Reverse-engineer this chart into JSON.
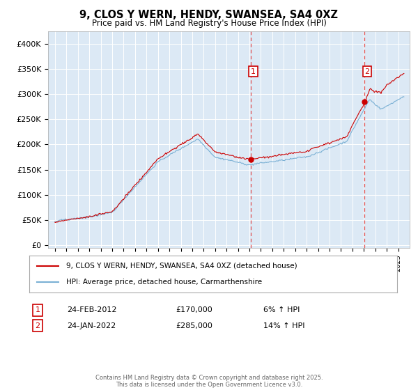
{
  "title": "9, CLOS Y WERN, HENDY, SWANSEA, SA4 0XZ",
  "subtitle": "Price paid vs. HM Land Registry's House Price Index (HPI)",
  "background_color": "#dce9f5",
  "plot_bg_color": "#dce9f5",
  "red_line_label": "9, CLOS Y WERN, HENDY, SWANSEA, SA4 0XZ (detached house)",
  "blue_line_label": "HPI: Average price, detached house, Carmarthenshire",
  "footer": "Contains HM Land Registry data © Crown copyright and database right 2025.\nThis data is licensed under the Open Government Licence v3.0.",
  "annotation1": {
    "num": "1",
    "date": "24-FEB-2012",
    "price": "£170,000",
    "pct": "6% ↑ HPI"
  },
  "annotation2": {
    "num": "2",
    "date": "24-JAN-2022",
    "price": "£285,000",
    "pct": "14% ↑ HPI"
  },
  "yticks": [
    0,
    50000,
    100000,
    150000,
    200000,
    250000,
    300000,
    350000,
    400000
  ],
  "ytick_labels": [
    "£0",
    "£50K",
    "£100K",
    "£150K",
    "£200K",
    "£250K",
    "£300K",
    "£350K",
    "£400K"
  ],
  "x_start_year": 1995,
  "x_end_year": 2025,
  "sale1_year": 2012.12,
  "sale1_price": 170000,
  "sale2_year": 2022.07,
  "sale2_price": 285000,
  "red_color": "#cc0000",
  "blue_color": "#7ab0d4",
  "grid_color": "#ffffff",
  "spine_color": "#aaaaaa"
}
